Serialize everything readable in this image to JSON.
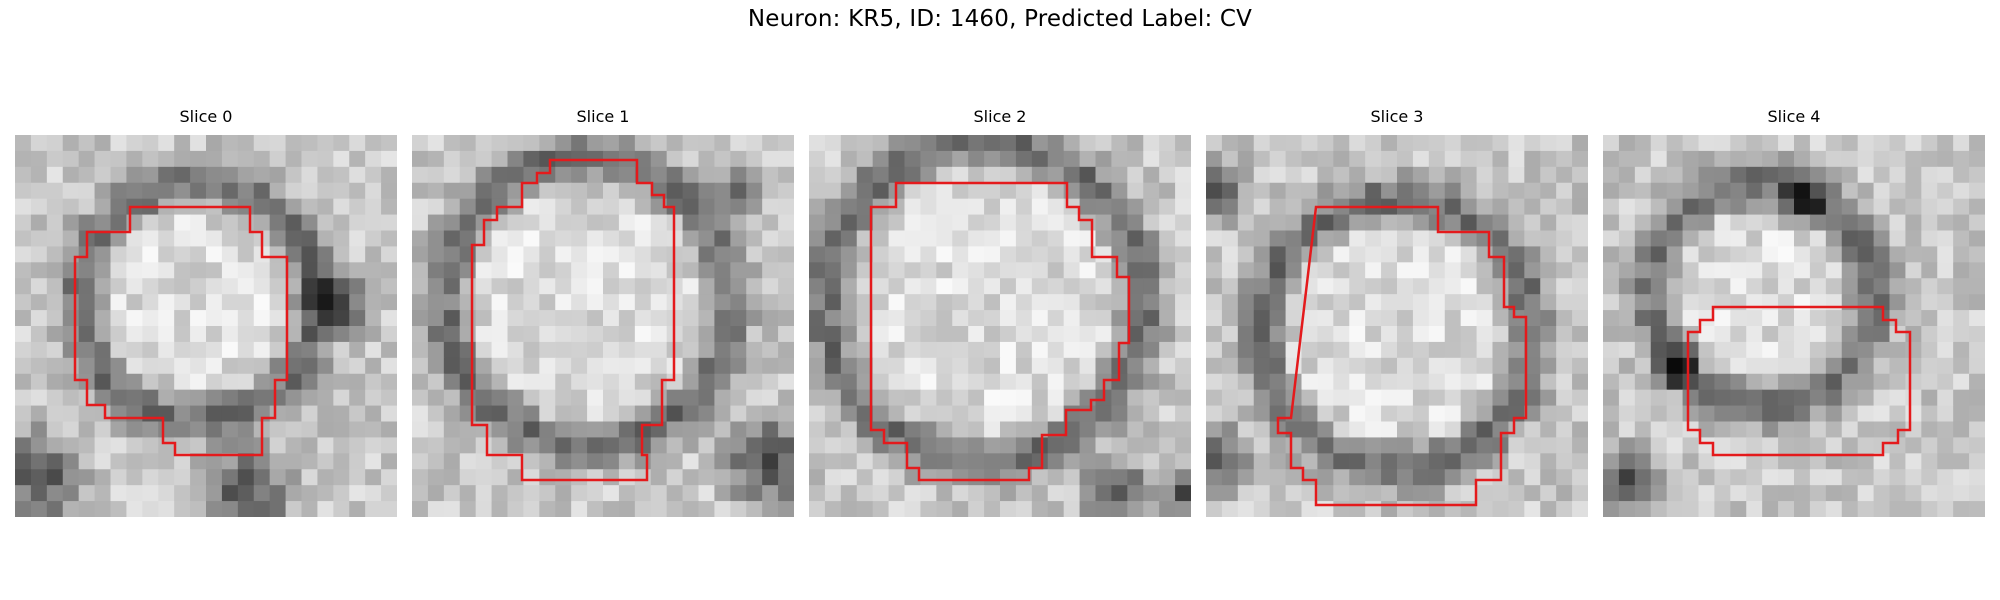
{
  "figure": {
    "title": "Neuron: KR5, ID: 1460, Predicted Label: CV"
  },
  "panels": [
    {
      "title": "Slice 0"
    },
    {
      "title": "Slice 1"
    },
    {
      "title": "Slice 2"
    },
    {
      "title": "Slice 3"
    },
    {
      "title": "Slice 4"
    }
  ],
  "colors": {
    "contour": "#e41a1c",
    "background": "#ffffff"
  },
  "image_style": "grayscale electron-microscopy crops with red segmentation contour"
}
